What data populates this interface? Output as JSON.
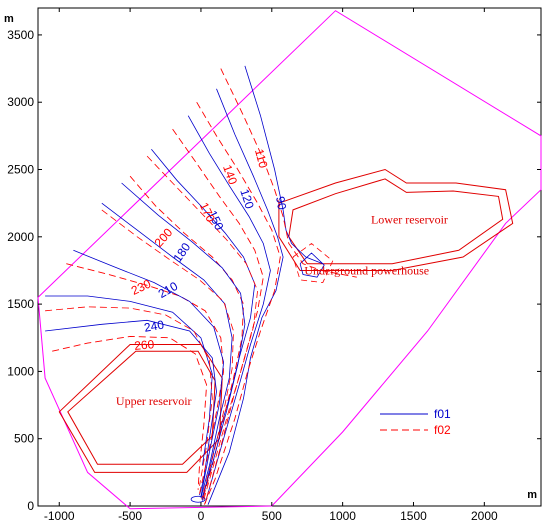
{
  "chart_data": {
    "type": "line",
    "x_unit": "m",
    "y_unit": "m",
    "xlim": [
      -1150,
      2400
    ],
    "ylim": [
      0,
      3700
    ],
    "x_ticks": [
      -1000,
      -500,
      0,
      500,
      1000,
      1500,
      2000
    ],
    "y_ticks": [
      0,
      500,
      1000,
      1500,
      2000,
      2500,
      3000,
      3500
    ],
    "legend": {
      "placement": "lower-right",
      "entries": [
        "f01",
        "f02"
      ]
    },
    "series": [
      {
        "name": "f01",
        "color": "#0000cc",
        "dash": "solid"
      },
      {
        "name": "f02",
        "color": "#ff0000",
        "dash": "dashed"
      }
    ],
    "boundary": {
      "color": "#ff00ff",
      "points": [
        [
          -1150,
          1550
        ],
        [
          950,
          3680
        ],
        [
          2400,
          2750
        ],
        [
          2400,
          2350
        ],
        [
          2150,
          2100
        ],
        [
          1600,
          1300
        ],
        [
          1000,
          550
        ],
        [
          500,
          0
        ],
        [
          -500,
          -20
        ],
        [
          -800,
          250
        ],
        [
          -1100,
          950
        ],
        [
          -1150,
          1550
        ]
      ]
    },
    "areas": [
      {
        "label": "Upper reservoir",
        "label_at": [
          -600,
          750
        ],
        "outer": [
          [
            -500,
            1200
          ],
          [
            0,
            1200
          ],
          [
            150,
            950
          ],
          [
            130,
            500
          ],
          [
            -100,
            250
          ],
          [
            -750,
            250
          ],
          [
            -1000,
            700
          ]
        ],
        "inner": [
          [
            -460,
            1150
          ],
          [
            -20,
            1150
          ],
          [
            100,
            930
          ],
          [
            80,
            520
          ],
          [
            -130,
            310
          ],
          [
            -730,
            310
          ],
          [
            -940,
            700
          ]
        ]
      },
      {
        "label": "Lower reservoir",
        "label_at": [
          1200,
          2100
        ],
        "outer": [
          [
            550,
            2250
          ],
          [
            950,
            2400
          ],
          [
            1300,
            2500
          ],
          [
            1450,
            2400
          ],
          [
            1800,
            2400
          ],
          [
            2150,
            2350
          ],
          [
            2200,
            2100
          ],
          [
            1850,
            1850
          ],
          [
            1350,
            1750
          ],
          [
            700,
            1750
          ],
          [
            550,
            2000
          ]
        ],
        "inner": [
          [
            650,
            2200
          ],
          [
            950,
            2320
          ],
          [
            1300,
            2430
          ],
          [
            1450,
            2330
          ],
          [
            1780,
            2340
          ],
          [
            2100,
            2300
          ],
          [
            2130,
            2130
          ],
          [
            1820,
            1900
          ],
          [
            1350,
            1800
          ],
          [
            750,
            1800
          ],
          [
            620,
            2000
          ]
        ]
      },
      {
        "label": "Underground powerhouse",
        "label_at": [
          730,
          1720
        ],
        "outer": [],
        "inner": []
      }
    ],
    "contours": [
      {
        "series": "f01",
        "level": "90",
        "points": [
          [
            310,
            3270
          ],
          [
            420,
            2900
          ],
          [
            520,
            2500
          ],
          [
            580,
            2200
          ],
          [
            600,
            2050
          ],
          [
            640,
            1950
          ],
          [
            740,
            1850
          ],
          [
            860,
            1800
          ]
        ]
      },
      {
        "series": "f01",
        "level": "120",
        "points": [
          [
            110,
            3100
          ],
          [
            240,
            2760
          ],
          [
            370,
            2450
          ],
          [
            470,
            2200
          ],
          [
            540,
            2000
          ],
          [
            580,
            1850
          ],
          [
            530,
            1600
          ],
          [
            430,
            1400
          ],
          [
            350,
            1100
          ],
          [
            300,
            800
          ],
          [
            200,
            400
          ],
          [
            50,
            10
          ]
        ]
      },
      {
        "series": "f01",
        "level": "150",
        "points": [
          [
            -90,
            2900
          ],
          [
            60,
            2620
          ],
          [
            200,
            2380
          ],
          [
            340,
            2150
          ],
          [
            440,
            1950
          ],
          [
            490,
            1750
          ],
          [
            440,
            1500
          ],
          [
            350,
            1200
          ],
          [
            270,
            900
          ],
          [
            160,
            500
          ],
          [
            30,
            20
          ]
        ]
      },
      {
        "series": "f01",
        "level": "180",
        "points": [
          [
            -350,
            2650
          ],
          [
            -170,
            2420
          ],
          [
            0,
            2230
          ],
          [
            170,
            2030
          ],
          [
            300,
            1850
          ],
          [
            380,
            1650
          ],
          [
            350,
            1400
          ],
          [
            270,
            1100
          ],
          [
            200,
            800
          ],
          [
            100,
            450
          ],
          [
            10,
            40
          ]
        ]
      },
      {
        "series": "f01",
        "level": "210",
        "points": [
          [
            -700,
            2250
          ],
          [
            -450,
            2050
          ],
          [
            -200,
            1850
          ],
          [
            20,
            1680
          ],
          [
            170,
            1500
          ],
          [
            220,
            1250
          ],
          [
            200,
            950
          ],
          [
            130,
            650
          ],
          [
            60,
            300
          ],
          [
            0,
            60
          ]
        ]
      },
      {
        "series": "f01",
        "level": "240",
        "points": [
          [
            -1100,
            1300
          ],
          [
            -700,
            1350
          ],
          [
            -380,
            1380
          ],
          [
            -80,
            1300
          ],
          [
            80,
            1100
          ],
          [
            110,
            850
          ],
          [
            60,
            500
          ],
          [
            20,
            200
          ],
          [
            -10,
            80
          ]
        ]
      },
      {
        "series": "f02",
        "level": "110",
        "points": [
          [
            140,
            3250
          ],
          [
            300,
            2900
          ],
          [
            430,
            2600
          ],
          [
            520,
            2350
          ],
          [
            580,
            2150
          ],
          [
            620,
            1950
          ],
          [
            720,
            1800
          ],
          [
            850,
            1750
          ],
          [
            1100,
            1700
          ]
        ]
      },
      {
        "series": "f02",
        "level": "140",
        "points": [
          [
            -30,
            3000
          ],
          [
            110,
            2750
          ],
          [
            260,
            2500
          ],
          [
            400,
            2250
          ],
          [
            500,
            2050
          ],
          [
            560,
            1850
          ],
          [
            520,
            1600
          ],
          [
            420,
            1300
          ],
          [
            330,
            1000
          ],
          [
            240,
            650
          ],
          [
            100,
            200
          ],
          [
            20,
            0
          ]
        ]
      },
      {
        "series": "f02",
        "level": "170",
        "points": [
          [
            -200,
            2800
          ],
          [
            -40,
            2560
          ],
          [
            130,
            2300
          ],
          [
            270,
            2100
          ],
          [
            380,
            1900
          ],
          [
            440,
            1700
          ],
          [
            400,
            1450
          ],
          [
            320,
            1150
          ],
          [
            240,
            850
          ],
          [
            150,
            480
          ],
          [
            30,
            20
          ]
        ]
      },
      {
        "series": "f02",
        "level": "200",
        "points": [
          [
            -500,
            2450
          ],
          [
            -320,
            2230
          ],
          [
            -120,
            2030
          ],
          [
            80,
            1850
          ],
          [
            220,
            1680
          ],
          [
            300,
            1500
          ],
          [
            290,
            1250
          ],
          [
            230,
            950
          ],
          [
            160,
            650
          ],
          [
            80,
            300
          ],
          [
            10,
            40
          ]
        ]
      },
      {
        "series": "f02",
        "level": "230",
        "points": [
          [
            -950,
            1800
          ],
          [
            -650,
            1720
          ],
          [
            -380,
            1640
          ],
          [
            -150,
            1560
          ],
          [
            30,
            1450
          ],
          [
            140,
            1250
          ],
          [
            160,
            1000
          ],
          [
            110,
            700
          ],
          [
            50,
            380
          ],
          [
            -10,
            90
          ]
        ]
      },
      {
        "series": "f02",
        "level": "260",
        "points": [
          [
            -1050,
            1150
          ],
          [
            -800,
            1210
          ],
          [
            -500,
            1260
          ],
          [
            -220,
            1250
          ],
          [
            -40,
            1130
          ],
          [
            40,
            900
          ],
          [
            20,
            600
          ],
          [
            -10,
            300
          ],
          [
            -20,
            120
          ]
        ]
      }
    ],
    "contour_labels": [
      {
        "text": "90",
        "series": "f01",
        "at": [
          560,
          2250
        ],
        "rotate": 80
      },
      {
        "text": "110",
        "series": "f02",
        "at": [
          420,
          2580
        ],
        "rotate": 75
      },
      {
        "text": "120",
        "series": "f01",
        "at": [
          320,
          2280
        ],
        "rotate": 72
      },
      {
        "text": "140",
        "series": "f02",
        "at": [
          200,
          2460
        ],
        "rotate": 70
      },
      {
        "text": "150",
        "series": "f01",
        "at": [
          100,
          2120
        ],
        "rotate": 65
      },
      {
        "text": "170",
        "series": "f02",
        "at": [
          40,
          2180
        ],
        "rotate": 65
      },
      {
        "text": "180",
        "series": "f01",
        "at": [
          -130,
          1880
        ],
        "rotate": -55
      },
      {
        "text": "200",
        "series": "f02",
        "at": [
          -260,
          1990
        ],
        "rotate": -48
      },
      {
        "text": "210",
        "series": "f01",
        "at": [
          -230,
          1600
        ],
        "rotate": -30
      },
      {
        "text": "230",
        "series": "f02",
        "at": [
          -420,
          1620
        ],
        "rotate": -25
      },
      {
        "text": "240",
        "series": "f01",
        "at": [
          -330,
          1330
        ],
        "rotate": -10
      },
      {
        "text": "260",
        "series": "f02",
        "at": [
          -400,
          1190
        ],
        "rotate": -5
      }
    ]
  }
}
